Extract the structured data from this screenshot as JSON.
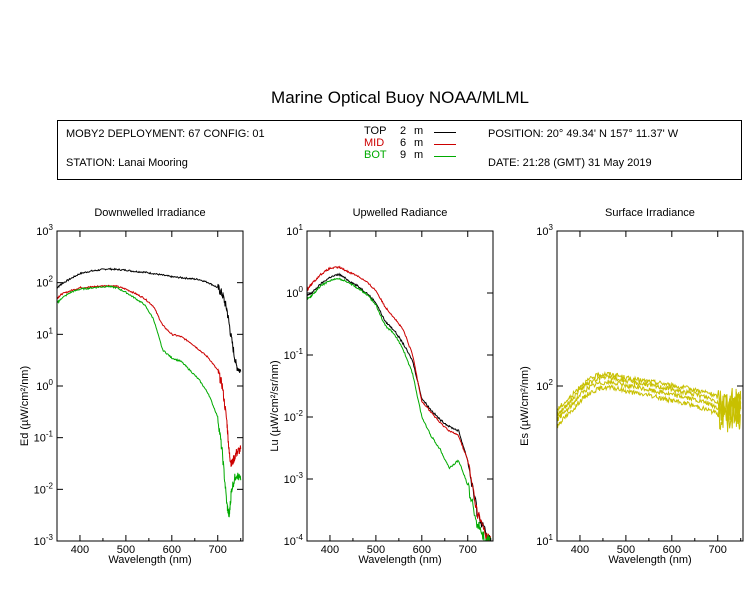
{
  "title": "Marine Optical Buoy NOAA/MLML",
  "info": {
    "deployment": "MOBY2 DEPLOYMENT: 67 CONFIG: 01",
    "station": "STATION: Lanai Mooring",
    "position": "POSITION: 20° 49.34' N   157° 11.37' W",
    "date": "DATE: 21:28 (GMT) 31 May 2019"
  },
  "legend": [
    {
      "name": "TOP",
      "depth": "2",
      "unit": "m",
      "color": "#000000"
    },
    {
      "name": "MID",
      "depth": "6",
      "unit": "m",
      "color": "#cc0000"
    },
    {
      "name": "BOT",
      "depth": "9",
      "unit": "m",
      "color": "#00aa00"
    }
  ],
  "chart_data": [
    {
      "type": "line",
      "title": "Downwelled Irradiance",
      "xlabel": "Wavelength (nm)",
      "ylabel": "Ed  (µW/cm²/nm)",
      "xlim": [
        350,
        755
      ],
      "ylim": [
        0.001,
        1000
      ],
      "yscale": "log",
      "xticks": [
        "400",
        "500",
        "600",
        "700"
      ],
      "yticks": [
        "10^-3",
        "10^-2",
        "10^-1",
        "10^0",
        "10^1",
        "10^2",
        "10^3"
      ],
      "series": [
        {
          "name": "TOP",
          "color": "#000000",
          "x": [
            350,
            360,
            380,
            400,
            420,
            440,
            460,
            480,
            500,
            520,
            540,
            560,
            580,
            600,
            620,
            640,
            660,
            680,
            700,
            710,
            720,
            730,
            740,
            750
          ],
          "y": [
            80,
            95,
            120,
            150,
            165,
            175,
            185,
            180,
            175,
            165,
            160,
            150,
            140,
            130,
            125,
            120,
            115,
            100,
            80,
            60,
            30,
            8,
            2.5,
            1.9
          ]
        },
        {
          "name": "MID",
          "color": "#cc0000",
          "x": [
            350,
            360,
            380,
            400,
            420,
            440,
            460,
            480,
            500,
            520,
            540,
            560,
            580,
            600,
            620,
            640,
            660,
            680,
            700,
            710,
            720,
            725,
            730,
            740,
            750
          ],
          "y": [
            50,
            60,
            70,
            80,
            82,
            85,
            88,
            85,
            75,
            62,
            50,
            35,
            15,
            10,
            9,
            7,
            5,
            3.5,
            2,
            1,
            0.2,
            0.05,
            0.03,
            0.05,
            0.06
          ]
        },
        {
          "name": "BOT",
          "color": "#00aa00",
          "x": [
            350,
            360,
            380,
            400,
            420,
            440,
            460,
            480,
            500,
            520,
            540,
            560,
            580,
            600,
            620,
            640,
            660,
            680,
            700,
            710,
            720,
            725,
            730,
            740,
            750
          ],
          "y": [
            40,
            50,
            65,
            75,
            78,
            82,
            85,
            80,
            65,
            50,
            38,
            20,
            5,
            3.5,
            3,
            2,
            1.3,
            0.7,
            0.25,
            0.05,
            0.005,
            0.003,
            0.01,
            0.02,
            0.015
          ]
        }
      ]
    },
    {
      "type": "line",
      "title": "Upwelled Radiance",
      "xlabel": "Wavelength (nm)",
      "ylabel": "Lu  (µW/cm²/sr/nm)",
      "xlim": [
        350,
        755
      ],
      "ylim": [
        0.0001,
        10
      ],
      "yscale": "log",
      "xticks": [
        "400",
        "500",
        "600",
        "700"
      ],
      "yticks": [
        "10^-4",
        "10^-3",
        "10^-2",
        "10^-1",
        "10^0",
        "10^1"
      ],
      "series": [
        {
          "name": "TOP",
          "color": "#000000",
          "x": [
            350,
            360,
            380,
            400,
            420,
            440,
            460,
            480,
            500,
            520,
            540,
            560,
            580,
            600,
            620,
            640,
            660,
            680,
            700,
            720,
            740,
            750
          ],
          "y": [
            0.9,
            1.0,
            1.4,
            1.8,
            2.0,
            1.6,
            1.3,
            1.0,
            0.7,
            0.35,
            0.25,
            0.15,
            0.08,
            0.02,
            0.013,
            0.009,
            0.007,
            0.006,
            0.002,
            0.0003,
            0.00012,
            0.0001
          ]
        },
        {
          "name": "MID",
          "color": "#cc0000",
          "x": [
            350,
            360,
            380,
            400,
            420,
            440,
            460,
            480,
            500,
            520,
            540,
            560,
            580,
            600,
            620,
            640,
            660,
            680,
            700,
            720,
            740,
            750
          ],
          "y": [
            1.1,
            1.4,
            2.0,
            2.5,
            2.6,
            2.2,
            1.9,
            1.5,
            1.1,
            0.6,
            0.4,
            0.25,
            0.1,
            0.018,
            0.012,
            0.008,
            0.006,
            0.005,
            0.002,
            0.0003,
            0.00012,
            0.0001
          ]
        },
        {
          "name": "BOT",
          "color": "#00aa00",
          "x": [
            350,
            360,
            380,
            400,
            420,
            440,
            460,
            480,
            500,
            520,
            540,
            560,
            580,
            600,
            620,
            640,
            660,
            680,
            700,
            720,
            740,
            750
          ],
          "y": [
            0.8,
            0.9,
            1.3,
            1.6,
            1.7,
            1.5,
            1.2,
            0.95,
            0.65,
            0.3,
            0.22,
            0.12,
            0.05,
            0.01,
            0.005,
            0.003,
            0.0015,
            0.002,
            0.0008,
            0.0002,
            0.0001,
            0.0001
          ]
        }
      ]
    },
    {
      "type": "line",
      "title": "Surface Irradiance",
      "xlabel": "Wavelength (nm)",
      "ylabel": "Es  (µW/cm²/nm)",
      "xlim": [
        350,
        755
      ],
      "ylim": [
        10,
        1000
      ],
      "yscale": "log",
      "xticks": [
        "400",
        "500",
        "600",
        "700"
      ],
      "yticks": [
        "10^1",
        "10^2",
        "10^3"
      ],
      "series": [
        {
          "name": "",
          "color": "#c8c000",
          "x": [
            350,
            360,
            380,
            400,
            420,
            440,
            460,
            480,
            500,
            520,
            540,
            560,
            580,
            600,
            620,
            640,
            660,
            680,
            700,
            720,
            740,
            750
          ],
          "y": [
            70,
            75,
            85,
            100,
            110,
            118,
            120,
            117,
            113,
            110,
            108,
            106,
            104,
            101,
            98,
            96,
            93,
            90,
            85,
            78,
            80,
            82
          ]
        },
        {
          "name": "",
          "color": "#c8c000",
          "x": [
            350,
            360,
            380,
            400,
            420,
            440,
            460,
            480,
            500,
            520,
            540,
            560,
            580,
            600,
            620,
            640,
            660,
            680,
            700,
            720,
            740,
            750
          ],
          "y": [
            65,
            70,
            80,
            95,
            105,
            112,
            114,
            111,
            108,
            105,
            103,
            100,
            98,
            95,
            92,
            90,
            87,
            84,
            79,
            72,
            75,
            77
          ]
        },
        {
          "name": "",
          "color": "#c8c000",
          "x": [
            350,
            360,
            380,
            400,
            420,
            440,
            460,
            480,
            500,
            520,
            540,
            560,
            580,
            600,
            620,
            640,
            660,
            680,
            700,
            720,
            740,
            750
          ],
          "y": [
            60,
            65,
            74,
            88,
            98,
            104,
            106,
            104,
            101,
            98,
            96,
            93,
            91,
            88,
            86,
            83,
            80,
            77,
            72,
            66,
            69,
            71
          ]
        },
        {
          "name": "",
          "color": "#c8c000",
          "x": [
            350,
            360,
            380,
            400,
            420,
            440,
            460,
            480,
            500,
            520,
            540,
            560,
            580,
            600,
            620,
            640,
            660,
            680,
            700,
            720,
            740,
            750
          ],
          "y": [
            55,
            60,
            68,
            80,
            90,
            96,
            98,
            96,
            93,
            90,
            88,
            86,
            83,
            81,
            78,
            76,
            73,
            70,
            66,
            60,
            63,
            65
          ]
        }
      ]
    }
  ]
}
